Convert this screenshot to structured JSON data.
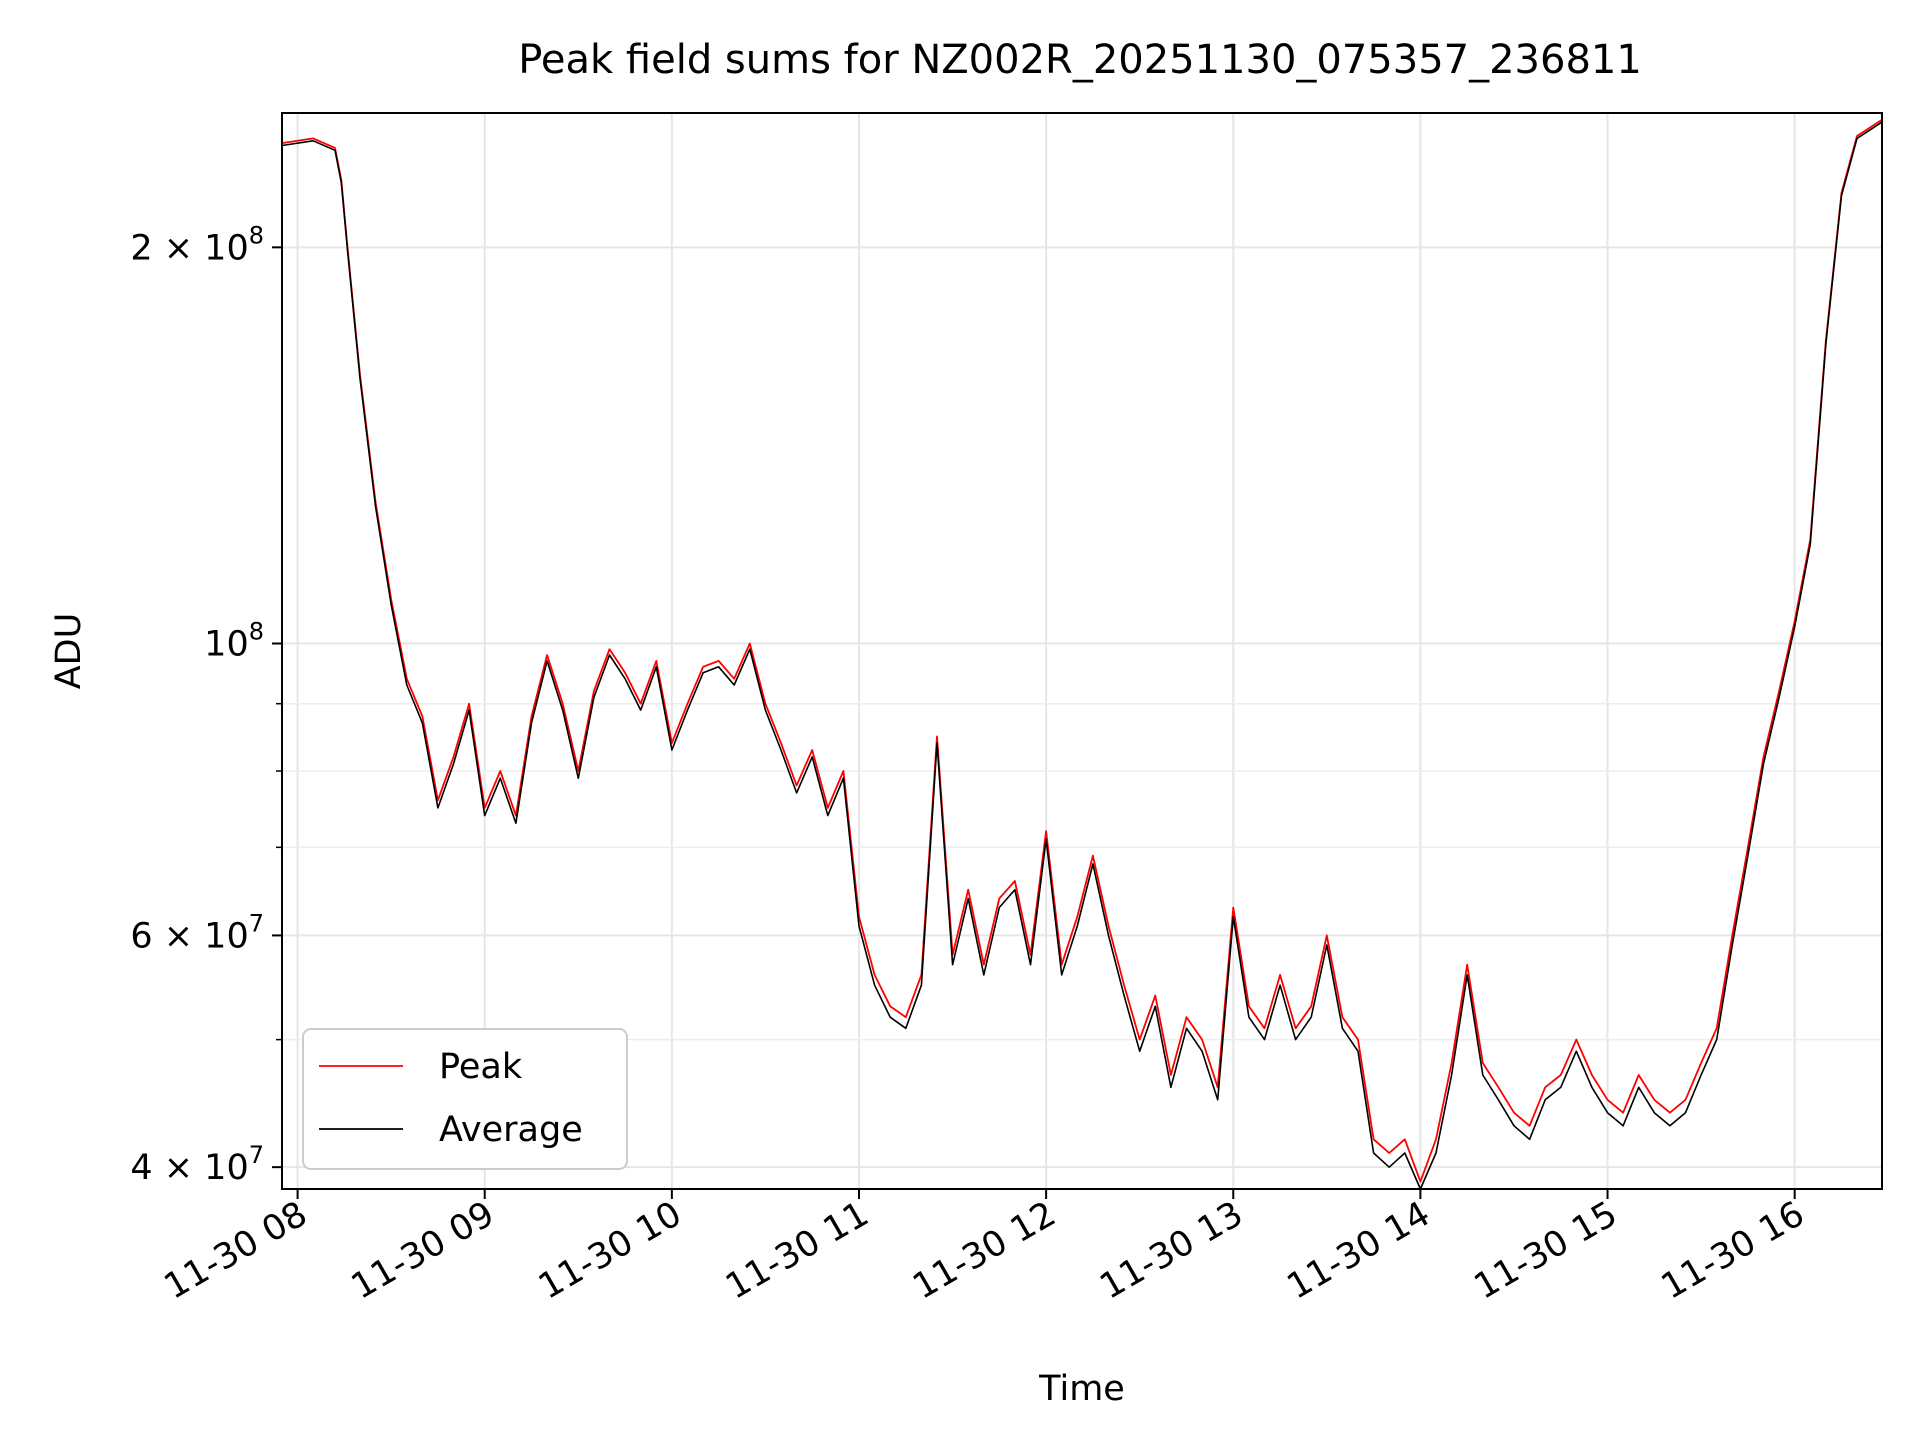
{
  "chart_data": {
    "type": "line",
    "title": "Peak field sums for NZ002R_20251130_075357_236811",
    "xlabel": "Time",
    "ylabel": "ADU",
    "yscale": "log",
    "ylim": [
      38500000,
      253000000
    ],
    "xlim": [
      "2025-11-30 07:55",
      "2025-11-30 16:28"
    ],
    "grid": true,
    "legend_position": "lower left",
    "x_ticks": [
      {
        "value": "2025-11-30 08:00",
        "label": "11-30 08"
      },
      {
        "value": "2025-11-30 09:00",
        "label": "11-30 09"
      },
      {
        "value": "2025-11-30 10:00",
        "label": "11-30 10"
      },
      {
        "value": "2025-11-30 11:00",
        "label": "11-30 11"
      },
      {
        "value": "2025-11-30 12:00",
        "label": "11-30 12"
      },
      {
        "value": "2025-11-30 13:00",
        "label": "11-30 13"
      },
      {
        "value": "2025-11-30 14:00",
        "label": "11-30 14"
      },
      {
        "value": "2025-11-30 15:00",
        "label": "11-30 15"
      },
      {
        "value": "2025-11-30 16:00",
        "label": "11-30 16"
      }
    ],
    "y_ticks": [
      {
        "value": 40000000,
        "label_mantissa": "4 × 10",
        "label_exp": "7"
      },
      {
        "value": 60000000,
        "label_mantissa": "6 × 10",
        "label_exp": "7"
      },
      {
        "value": 100000000,
        "label_mantissa": "10",
        "label_exp": "8"
      },
      {
        "value": 200000000,
        "label_mantissa": "2 × 10",
        "label_exp": "8"
      }
    ],
    "y_minor_ticks": [
      50000000,
      70000000,
      80000000,
      90000000
    ],
    "series": [
      {
        "name": "Peak",
        "color": "#ff0000",
        "x": [
          "2025-11-30 07:55",
          "2025-11-30 08:05",
          "2025-11-30 08:12",
          "2025-11-30 08:14",
          "2025-11-30 08:16",
          "2025-11-30 08:20",
          "2025-11-30 08:25",
          "2025-11-30 08:30",
          "2025-11-30 08:35",
          "2025-11-30 08:40",
          "2025-11-30 08:45",
          "2025-11-30 08:50",
          "2025-11-30 08:55",
          "2025-11-30 09:00",
          "2025-11-30 09:05",
          "2025-11-30 09:10",
          "2025-11-30 09:15",
          "2025-11-30 09:20",
          "2025-11-30 09:25",
          "2025-11-30 09:30",
          "2025-11-30 09:35",
          "2025-11-30 09:40",
          "2025-11-30 09:45",
          "2025-11-30 09:50",
          "2025-11-30 09:55",
          "2025-11-30 10:00",
          "2025-11-30 10:05",
          "2025-11-30 10:10",
          "2025-11-30 10:15",
          "2025-11-30 10:20",
          "2025-11-30 10:25",
          "2025-11-30 10:30",
          "2025-11-30 10:35",
          "2025-11-30 10:40",
          "2025-11-30 10:45",
          "2025-11-30 10:50",
          "2025-11-30 10:55",
          "2025-11-30 11:00",
          "2025-11-30 11:05",
          "2025-11-30 11:10",
          "2025-11-30 11:15",
          "2025-11-30 11:20",
          "2025-11-30 11:25",
          "2025-11-30 11:30",
          "2025-11-30 11:35",
          "2025-11-30 11:40",
          "2025-11-30 11:45",
          "2025-11-30 11:50",
          "2025-11-30 11:55",
          "2025-11-30 12:00",
          "2025-11-30 12:05",
          "2025-11-30 12:10",
          "2025-11-30 12:15",
          "2025-11-30 12:20",
          "2025-11-30 12:25",
          "2025-11-30 12:30",
          "2025-11-30 12:35",
          "2025-11-30 12:40",
          "2025-11-30 12:45",
          "2025-11-30 12:50",
          "2025-11-30 12:55",
          "2025-11-30 13:00",
          "2025-11-30 13:05",
          "2025-11-30 13:10",
          "2025-11-30 13:15",
          "2025-11-30 13:20",
          "2025-11-30 13:25",
          "2025-11-30 13:30",
          "2025-11-30 13:35",
          "2025-11-30 13:40",
          "2025-11-30 13:45",
          "2025-11-30 13:50",
          "2025-11-30 13:55",
          "2025-11-30 14:00",
          "2025-11-30 14:05",
          "2025-11-30 14:10",
          "2025-11-30 14:15",
          "2025-11-30 14:20",
          "2025-11-30 14:25",
          "2025-11-30 14:30",
          "2025-11-30 14:35",
          "2025-11-30 14:40",
          "2025-11-30 14:45",
          "2025-11-30 14:50",
          "2025-11-30 14:55",
          "2025-11-30 15:00",
          "2025-11-30 15:05",
          "2025-11-30 15:10",
          "2025-11-30 15:15",
          "2025-11-30 15:20",
          "2025-11-30 15:25",
          "2025-11-30 15:30",
          "2025-11-30 15:35",
          "2025-11-30 15:40",
          "2025-11-30 15:45",
          "2025-11-30 15:50",
          "2025-11-30 15:55",
          "2025-11-30 16:00",
          "2025-11-30 16:05",
          "2025-11-30 16:10",
          "2025-11-30 16:15",
          "2025-11-30 16:20",
          "2025-11-30 16:28"
        ],
        "values": [
          240000000,
          242000000,
          238000000,
          225000000,
          200000000,
          160000000,
          128000000,
          108000000,
          94000000,
          88000000,
          76000000,
          82000000,
          90000000,
          75000000,
          80000000,
          74000000,
          88000000,
          98000000,
          90000000,
          80000000,
          92000000,
          99000000,
          95000000,
          90000000,
          97000000,
          84000000,
          90000000,
          96000000,
          97000000,
          94000000,
          100000000,
          90000000,
          84000000,
          78000000,
          83000000,
          75000000,
          80000000,
          62000000,
          56000000,
          53000000,
          52000000,
          56000000,
          85000000,
          58000000,
          65000000,
          57000000,
          64000000,
          66000000,
          58000000,
          72000000,
          57000000,
          62000000,
          69000000,
          61000000,
          55000000,
          50000000,
          54000000,
          47000000,
          52000000,
          50000000,
          46000000,
          63000000,
          53000000,
          51000000,
          56000000,
          51000000,
          53000000,
          60000000,
          52000000,
          50000000,
          42000000,
          41000000,
          42000000,
          39000000,
          42000000,
          48000000,
          57000000,
          48000000,
          46000000,
          44000000,
          43000000,
          46000000,
          47000000,
          50000000,
          47000000,
          45000000,
          44000000,
          47000000,
          45000000,
          44000000,
          45000000,
          48000000,
          51000000,
          60000000,
          70000000,
          82000000,
          92000000,
          104000000,
          120000000,
          170000000,
          220000000,
          243000000,
          250000000
        ]
      },
      {
        "name": "Average",
        "color": "#000000",
        "x": [
          "2025-11-30 07:55",
          "2025-11-30 08:05",
          "2025-11-30 08:12",
          "2025-11-30 08:14",
          "2025-11-30 08:16",
          "2025-11-30 08:20",
          "2025-11-30 08:25",
          "2025-11-30 08:30",
          "2025-11-30 08:35",
          "2025-11-30 08:40",
          "2025-11-30 08:45",
          "2025-11-30 08:50",
          "2025-11-30 08:55",
          "2025-11-30 09:00",
          "2025-11-30 09:05",
          "2025-11-30 09:10",
          "2025-11-30 09:15",
          "2025-11-30 09:20",
          "2025-11-30 09:25",
          "2025-11-30 09:30",
          "2025-11-30 09:35",
          "2025-11-30 09:40",
          "2025-11-30 09:45",
          "2025-11-30 09:50",
          "2025-11-30 09:55",
          "2025-11-30 10:00",
          "2025-11-30 10:05",
          "2025-11-30 10:10",
          "2025-11-30 10:15",
          "2025-11-30 10:20",
          "2025-11-30 10:25",
          "2025-11-30 10:30",
          "2025-11-30 10:35",
          "2025-11-30 10:40",
          "2025-11-30 10:45",
          "2025-11-30 10:50",
          "2025-11-30 10:55",
          "2025-11-30 11:00",
          "2025-11-30 11:05",
          "2025-11-30 11:10",
          "2025-11-30 11:15",
          "2025-11-30 11:20",
          "2025-11-30 11:25",
          "2025-11-30 11:30",
          "2025-11-30 11:35",
          "2025-11-30 11:40",
          "2025-11-30 11:45",
          "2025-11-30 11:50",
          "2025-11-30 11:55",
          "2025-11-30 12:00",
          "2025-11-30 12:05",
          "2025-11-30 12:10",
          "2025-11-30 12:15",
          "2025-11-30 12:20",
          "2025-11-30 12:25",
          "2025-11-30 12:30",
          "2025-11-30 12:35",
          "2025-11-30 12:40",
          "2025-11-30 12:45",
          "2025-11-30 12:50",
          "2025-11-30 12:55",
          "2025-11-30 13:00",
          "2025-11-30 13:05",
          "2025-11-30 13:10",
          "2025-11-30 13:15",
          "2025-11-30 13:20",
          "2025-11-30 13:25",
          "2025-11-30 13:30",
          "2025-11-30 13:35",
          "2025-11-30 13:40",
          "2025-11-30 13:45",
          "2025-11-30 13:50",
          "2025-11-30 13:55",
          "2025-11-30 14:00",
          "2025-11-30 14:05",
          "2025-11-30 14:10",
          "2025-11-30 14:15",
          "2025-11-30 14:20",
          "2025-11-30 14:25",
          "2025-11-30 14:30",
          "2025-11-30 14:35",
          "2025-11-30 14:40",
          "2025-11-30 14:45",
          "2025-11-30 14:50",
          "2025-11-30 14:55",
          "2025-11-30 15:00",
          "2025-11-30 15:05",
          "2025-11-30 15:10",
          "2025-11-30 15:15",
          "2025-11-30 15:20",
          "2025-11-30 15:25",
          "2025-11-30 15:30",
          "2025-11-30 15:35",
          "2025-11-30 15:40",
          "2025-11-30 15:45",
          "2025-11-30 15:50",
          "2025-11-30 15:55",
          "2025-11-30 16:00",
          "2025-11-30 16:05",
          "2025-11-30 16:10",
          "2025-11-30 16:15",
          "2025-11-30 16:20",
          "2025-11-30 16:28"
        ],
        "values": [
          239000000,
          241000000,
          237000000,
          224000000,
          199000000,
          159000000,
          127000000,
          107000000,
          93000000,
          87000000,
          75000000,
          81000000,
          89000000,
          74000000,
          79000000,
          73000000,
          87000000,
          97000000,
          89000000,
          79000000,
          91000000,
          98000000,
          94000000,
          89000000,
          96000000,
          83000000,
          89000000,
          95000000,
          96000000,
          93000000,
          99000000,
          89000000,
          83000000,
          77000000,
          82000000,
          74000000,
          79000000,
          61000000,
          55000000,
          52000000,
          51000000,
          55000000,
          84000000,
          57000000,
          64000000,
          56000000,
          63000000,
          65000000,
          57000000,
          71000000,
          56000000,
          61000000,
          68000000,
          60000000,
          54000000,
          49000000,
          53000000,
          46000000,
          51000000,
          49000000,
          45000000,
          62000000,
          52000000,
          50000000,
          55000000,
          50000000,
          52000000,
          59000000,
          51000000,
          49000000,
          41000000,
          40000000,
          41000000,
          38500000,
          41000000,
          47000000,
          56000000,
          47000000,
          45000000,
          43000000,
          42000000,
          45000000,
          46000000,
          49000000,
          46000000,
          44000000,
          43000000,
          46000000,
          44000000,
          43000000,
          44000000,
          47000000,
          50000000,
          59000000,
          69000000,
          81000000,
          91000000,
          103000000,
          119000000,
          169000000,
          219000000,
          242000000,
          249000000
        ]
      }
    ]
  }
}
